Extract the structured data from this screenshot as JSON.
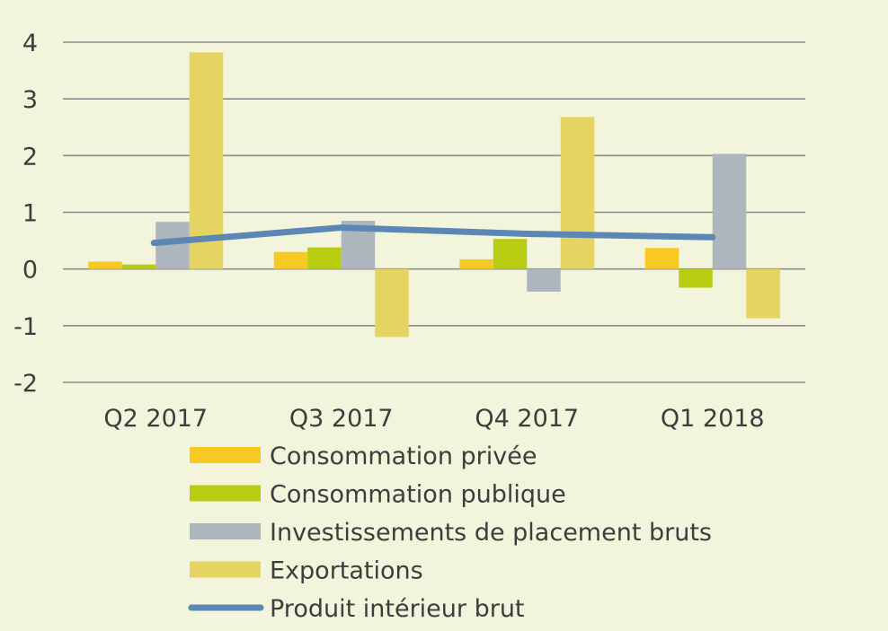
{
  "chart_data": {
    "type": "bar",
    "title": "",
    "xlabel": "",
    "ylabel": "",
    "categories": [
      "Q2 2017",
      "Q3 2017",
      "Q4 2017",
      "Q1 2018"
    ],
    "ylim": [
      -2,
      4
    ],
    "yticks": [
      4,
      3,
      2,
      1,
      0,
      -1,
      -2
    ],
    "ytick_labels": [
      "4",
      "3",
      "2",
      "1",
      "0",
      "-1",
      "-2"
    ],
    "grid": true,
    "legend_position": "bottom",
    "series": [
      {
        "name": "Consommation privée",
        "kind": "bar",
        "color": "#f9c923",
        "values": [
          0.13,
          0.3,
          0.17,
          0.37
        ]
      },
      {
        "name": "Consommation publique",
        "kind": "bar",
        "color": "#b8cc12",
        "values": [
          0.08,
          0.38,
          0.53,
          -0.33
        ]
      },
      {
        "name": "Investissements de placement bruts",
        "kind": "bar",
        "color": "#adb6bd",
        "values": [
          0.83,
          0.85,
          -0.4,
          2.03
        ]
      },
      {
        "name": "Exportations",
        "kind": "bar",
        "color": "#e6d462",
        "values": [
          3.82,
          -1.2,
          2.68,
          -0.87
        ]
      },
      {
        "name": "Produit intérieur brut",
        "kind": "line",
        "color": "#5b87b5",
        "values": [
          0.46,
          0.73,
          0.62,
          0.56
        ]
      }
    ]
  }
}
